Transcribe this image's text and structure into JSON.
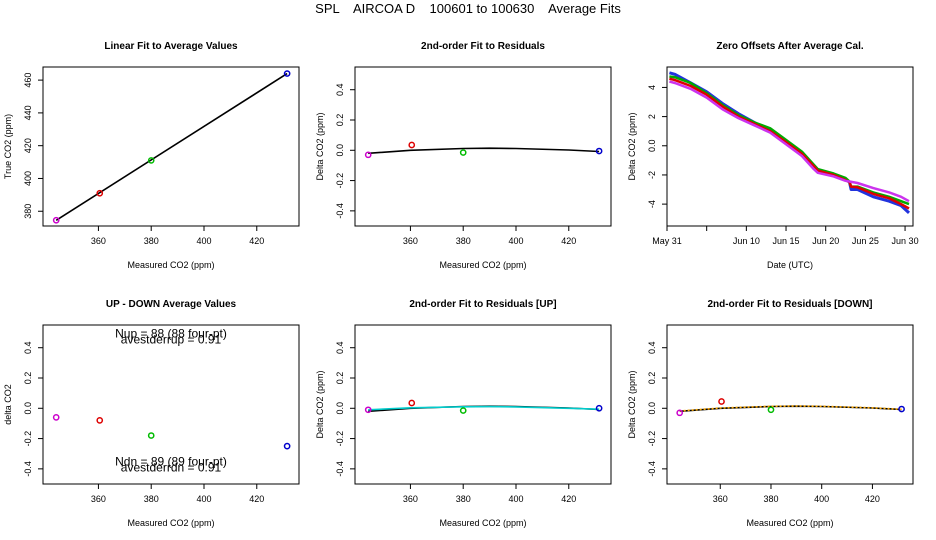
{
  "figure": {
    "title": "SPL    AIRCOA D    100601 to 100630    Average Fits"
  },
  "chart_data": [
    {
      "type": "scatter",
      "title": "Linear Fit to Average Values",
      "xlabel": "Measured CO2 (ppm)",
      "ylabel": "True CO2 (ppm)",
      "xlim": [
        339,
        436
      ],
      "ylim": [
        371,
        468
      ],
      "xticks": [
        360,
        380,
        400,
        420
      ],
      "yticks": [
        380,
        400,
        420,
        440,
        460
      ],
      "points": [
        {
          "x": 344,
          "y": 374.5,
          "color": "#cc00cc"
        },
        {
          "x": 360.5,
          "y": 391,
          "color": "#dd0000"
        },
        {
          "x": 380,
          "y": 411,
          "color": "#00bb00"
        },
        {
          "x": 431.5,
          "y": 464,
          "color": "#0000cc"
        }
      ],
      "lines": [
        {
          "x": [
            344,
            431.5
          ],
          "y": [
            374.5,
            464
          ],
          "color": "#000000",
          "width": 1.6
        }
      ]
    },
    {
      "type": "scatter",
      "title": "2nd-order Fit to Residuals",
      "xlabel": "Measured CO2 (ppm)",
      "ylabel": "Delta CO2 (ppm)",
      "xlim": [
        339,
        436
      ],
      "ylim": [
        -0.5,
        0.55
      ],
      "xticks": [
        360,
        380,
        400,
        420
      ],
      "yticks": [
        -0.4,
        -0.2,
        0.0,
        0.2,
        0.4
      ],
      "points": [
        {
          "x": 344,
          "y": -0.03,
          "color": "#cc00cc"
        },
        {
          "x": 360.5,
          "y": 0.035,
          "color": "#dd0000"
        },
        {
          "x": 380,
          "y": -0.015,
          "color": "#00bb00"
        },
        {
          "x": 431.5,
          "y": -0.005,
          "color": "#0000cc"
        }
      ],
      "lines": [
        {
          "x": [
            344,
            360,
            380,
            390,
            400,
            420,
            431.5
          ],
          "y": [
            -0.02,
            0.0,
            0.012,
            0.014,
            0.012,
            0.002,
            -0.008
          ],
          "color": "#000000",
          "width": 1.6
        }
      ]
    },
    {
      "type": "line",
      "title": "Zero Offsets After Average Cal.",
      "xlabel": "Date (UTC)",
      "ylabel": "Delta CO2 (ppm)",
      "xlim": [
        0,
        31
      ],
      "ylim": [
        -5.5,
        5.4
      ],
      "xtick_values": [
        0,
        10,
        15,
        20,
        25,
        30
      ],
      "xtick_labels": [
        "May 31",
        "Jun 10",
        "Jun 15",
        "Jun 20",
        "Jun 25",
        "Jun 30"
      ],
      "xminor": [
        5
      ],
      "yticks": [
        -4,
        -2,
        0,
        2,
        4
      ],
      "series": [
        {
          "color": "#2233dd",
          "width": 3,
          "x": [
            0.3,
            1,
            3,
            5,
            7,
            9,
            11,
            13,
            15,
            17,
            18.5,
            19,
            21,
            22.5,
            23,
            23.2,
            24,
            26,
            28,
            29.5,
            30.5
          ],
          "y": [
            5.0,
            4.9,
            4.3,
            3.7,
            2.9,
            2.2,
            1.6,
            1.0,
            0.3,
            -0.5,
            -1.4,
            -1.7,
            -2.0,
            -2.3,
            -2.5,
            -3.0,
            -3.0,
            -3.5,
            -3.8,
            -4.1,
            -4.6
          ]
        },
        {
          "color": "#00aa00",
          "width": 2.5,
          "x": [
            0.3,
            1,
            3,
            5,
            7,
            9,
            11,
            13,
            15,
            17,
            18.5,
            19,
            21,
            22.5,
            23,
            23.2,
            24,
            26,
            28,
            29.5,
            30.5
          ],
          "y": [
            4.75,
            4.7,
            4.3,
            3.6,
            2.8,
            2.1,
            1.6,
            1.2,
            0.4,
            -0.4,
            -1.3,
            -1.6,
            -1.9,
            -2.2,
            -2.45,
            -2.8,
            -2.8,
            -3.2,
            -3.5,
            -3.8,
            -4.0
          ]
        },
        {
          "color": "#dd0000",
          "width": 2.5,
          "x": [
            0.3,
            1,
            3,
            5,
            7,
            9,
            11,
            13,
            15,
            17,
            18.5,
            19,
            21,
            22.5,
            23,
            23.2,
            24,
            26,
            28,
            29.5,
            30.5
          ],
          "y": [
            4.6,
            4.5,
            4.1,
            3.5,
            2.7,
            2.0,
            1.5,
            1.0,
            0.25,
            -0.55,
            -1.4,
            -1.7,
            -2.0,
            -2.35,
            -2.5,
            -2.8,
            -2.85,
            -3.3,
            -3.6,
            -4.0,
            -4.3
          ]
        },
        {
          "color": "#cc33ee",
          "width": 2.5,
          "x": [
            0.3,
            1,
            3,
            5,
            7,
            9,
            11,
            13,
            15,
            17,
            18.5,
            19,
            21,
            22.5,
            23,
            24,
            26,
            28,
            29.5,
            30.5
          ],
          "y": [
            4.4,
            4.3,
            3.9,
            3.3,
            2.5,
            1.9,
            1.4,
            0.9,
            0.1,
            -0.7,
            -1.6,
            -1.85,
            -2.1,
            -2.4,
            -2.45,
            -2.55,
            -2.9,
            -3.2,
            -3.5,
            -3.8
          ]
        }
      ]
    },
    {
      "type": "scatter",
      "title": "UP - DOWN Average Values",
      "xlabel": "Measured CO2 (ppm)",
      "ylabel": "delta CO2",
      "xlim": [
        339,
        436
      ],
      "ylim": [
        -0.5,
        0.55
      ],
      "xticks": [
        360,
        380,
        400,
        420
      ],
      "yticks": [
        -0.4,
        -0.2,
        0.0,
        0.2,
        0.4
      ],
      "points": [
        {
          "x": 344,
          "y": -0.06,
          "color": "#cc00cc"
        },
        {
          "x": 360.5,
          "y": -0.08,
          "color": "#dd0000"
        },
        {
          "x": 380,
          "y": -0.18,
          "color": "#00bb00"
        },
        {
          "x": 431.5,
          "y": -0.25,
          "color": "#0000cc"
        }
      ],
      "annotations": [
        {
          "text": "Nup = 88 (88 four-pt)",
          "ax": 0.5,
          "ay": 0.945
        },
        {
          "text": "avestderrup =  0.91",
          "ax": 0.5,
          "ay": 0.91
        },
        {
          "text": "Ndn = 89 (89 four-pt)",
          "ax": 0.5,
          "ay": 0.14
        },
        {
          "text": "avestderrdn =  0.91",
          "ax": 0.5,
          "ay": 0.105
        }
      ]
    },
    {
      "type": "scatter",
      "title": "2nd-order Fit to Residuals [UP]",
      "xlabel": "Measured CO2 (ppm)",
      "ylabel": "Delta CO2 (ppm)",
      "xlim": [
        339,
        436
      ],
      "ylim": [
        -0.5,
        0.55
      ],
      "xticks": [
        360,
        380,
        400,
        420
      ],
      "yticks": [
        -0.4,
        -0.2,
        0.0,
        0.2,
        0.4
      ],
      "points": [
        {
          "x": 344,
          "y": -0.01,
          "color": "#cc00cc"
        },
        {
          "x": 360.5,
          "y": 0.035,
          "color": "#dd0000"
        },
        {
          "x": 380,
          "y": -0.015,
          "color": "#00bb00"
        },
        {
          "x": 431.5,
          "y": 0.0,
          "color": "#0000cc"
        }
      ],
      "lines": [
        {
          "x": [
            344,
            360,
            380,
            390,
            400,
            420,
            431.5
          ],
          "y": [
            -0.02,
            0.0,
            0.012,
            0.014,
            0.012,
            0.002,
            -0.008
          ],
          "color": "#000000",
          "width": 1.6
        },
        {
          "x": [
            344,
            360,
            380,
            390,
            400,
            420,
            431.5
          ],
          "y": [
            -0.01,
            0.003,
            0.01,
            0.011,
            0.009,
            0.0,
            -0.006
          ],
          "color": "#00cccc",
          "width": 1.6
        }
      ]
    },
    {
      "type": "scatter",
      "title": "2nd-order Fit to Residuals [DOWN]",
      "xlabel": "Measured CO2 (ppm)",
      "ylabel": "Delta CO2 (ppm)",
      "xlim": [
        339,
        436
      ],
      "ylim": [
        -0.5,
        0.55
      ],
      "xticks": [
        360,
        380,
        400,
        420
      ],
      "yticks": [
        -0.4,
        -0.2,
        0.0,
        0.2,
        0.4
      ],
      "points": [
        {
          "x": 344,
          "y": -0.03,
          "color": "#cc00cc"
        },
        {
          "x": 360.5,
          "y": 0.045,
          "color": "#dd0000"
        },
        {
          "x": 380,
          "y": -0.01,
          "color": "#00bb00"
        },
        {
          "x": 431.5,
          "y": -0.005,
          "color": "#0000cc"
        }
      ],
      "lines": [
        {
          "x": [
            344,
            360,
            380,
            390,
            400,
            420,
            431.5
          ],
          "y": [
            -0.02,
            0.0,
            0.012,
            0.014,
            0.012,
            0.002,
            -0.008
          ],
          "color": "#000000",
          "width": 1.6
        },
        {
          "x": [
            344,
            360,
            380,
            390,
            400,
            420,
            431.5
          ],
          "y": [
            -0.018,
            0.002,
            0.013,
            0.015,
            0.013,
            0.003,
            -0.007
          ],
          "color": "#ffaa00",
          "width": 1.6,
          "dash": "2,2"
        }
      ]
    }
  ]
}
